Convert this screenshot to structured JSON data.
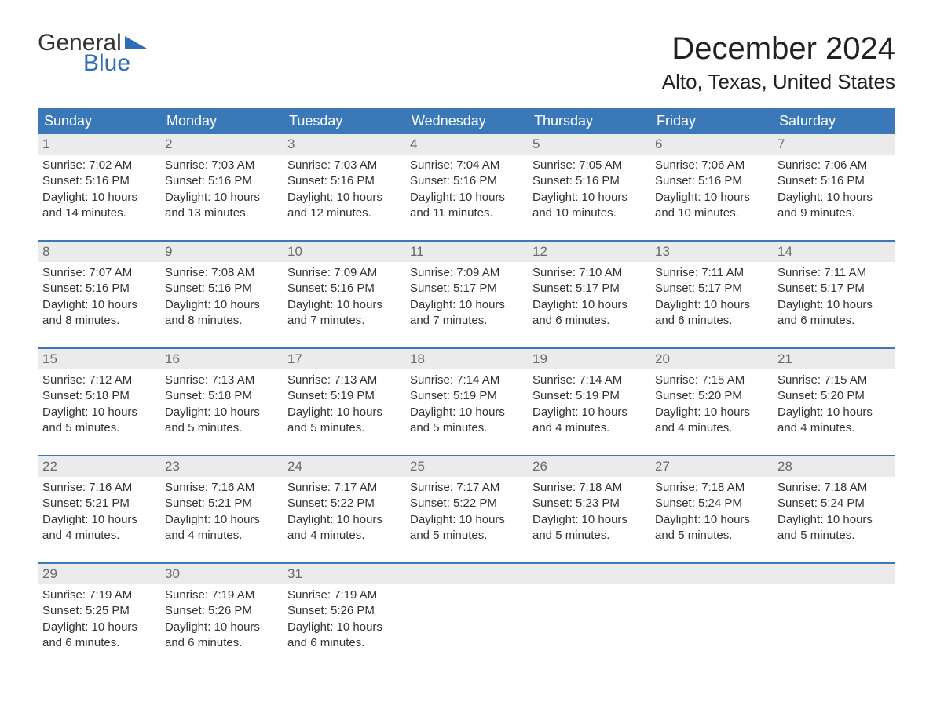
{
  "logo": {
    "text1": "General",
    "text2": "Blue",
    "accent_color": "#2f6eb5"
  },
  "title": "December 2024",
  "location": "Alto, Texas, United States",
  "colors": {
    "header_bg": "#3a78b8",
    "header_text": "#ffffff",
    "daynum_bg": "#ebebeb",
    "daynum_text": "#6a6a6a",
    "body_text": "#333333",
    "week_divider": "#3a78b8",
    "page_bg": "#ffffff"
  },
  "typography": {
    "title_fontsize": 40,
    "location_fontsize": 26,
    "dow_fontsize": 18,
    "daynum_fontsize": 17,
    "body_fontsize": 15
  },
  "days_of_week": [
    "Sunday",
    "Monday",
    "Tuesday",
    "Wednesday",
    "Thursday",
    "Friday",
    "Saturday"
  ],
  "weeks": [
    [
      {
        "n": "1",
        "sunrise": "Sunrise: 7:02 AM",
        "sunset": "Sunset: 5:16 PM",
        "d1": "Daylight: 10 hours",
        "d2": "and 14 minutes."
      },
      {
        "n": "2",
        "sunrise": "Sunrise: 7:03 AM",
        "sunset": "Sunset: 5:16 PM",
        "d1": "Daylight: 10 hours",
        "d2": "and 13 minutes."
      },
      {
        "n": "3",
        "sunrise": "Sunrise: 7:03 AM",
        "sunset": "Sunset: 5:16 PM",
        "d1": "Daylight: 10 hours",
        "d2": "and 12 minutes."
      },
      {
        "n": "4",
        "sunrise": "Sunrise: 7:04 AM",
        "sunset": "Sunset: 5:16 PM",
        "d1": "Daylight: 10 hours",
        "d2": "and 11 minutes."
      },
      {
        "n": "5",
        "sunrise": "Sunrise: 7:05 AM",
        "sunset": "Sunset: 5:16 PM",
        "d1": "Daylight: 10 hours",
        "d2": "and 10 minutes."
      },
      {
        "n": "6",
        "sunrise": "Sunrise: 7:06 AM",
        "sunset": "Sunset: 5:16 PM",
        "d1": "Daylight: 10 hours",
        "d2": "and 10 minutes."
      },
      {
        "n": "7",
        "sunrise": "Sunrise: 7:06 AM",
        "sunset": "Sunset: 5:16 PM",
        "d1": "Daylight: 10 hours",
        "d2": "and 9 minutes."
      }
    ],
    [
      {
        "n": "8",
        "sunrise": "Sunrise: 7:07 AM",
        "sunset": "Sunset: 5:16 PM",
        "d1": "Daylight: 10 hours",
        "d2": "and 8 minutes."
      },
      {
        "n": "9",
        "sunrise": "Sunrise: 7:08 AM",
        "sunset": "Sunset: 5:16 PM",
        "d1": "Daylight: 10 hours",
        "d2": "and 8 minutes."
      },
      {
        "n": "10",
        "sunrise": "Sunrise: 7:09 AM",
        "sunset": "Sunset: 5:16 PM",
        "d1": "Daylight: 10 hours",
        "d2": "and 7 minutes."
      },
      {
        "n": "11",
        "sunrise": "Sunrise: 7:09 AM",
        "sunset": "Sunset: 5:17 PM",
        "d1": "Daylight: 10 hours",
        "d2": "and 7 minutes."
      },
      {
        "n": "12",
        "sunrise": "Sunrise: 7:10 AM",
        "sunset": "Sunset: 5:17 PM",
        "d1": "Daylight: 10 hours",
        "d2": "and 6 minutes."
      },
      {
        "n": "13",
        "sunrise": "Sunrise: 7:11 AM",
        "sunset": "Sunset: 5:17 PM",
        "d1": "Daylight: 10 hours",
        "d2": "and 6 minutes."
      },
      {
        "n": "14",
        "sunrise": "Sunrise: 7:11 AM",
        "sunset": "Sunset: 5:17 PM",
        "d1": "Daylight: 10 hours",
        "d2": "and 6 minutes."
      }
    ],
    [
      {
        "n": "15",
        "sunrise": "Sunrise: 7:12 AM",
        "sunset": "Sunset: 5:18 PM",
        "d1": "Daylight: 10 hours",
        "d2": "and 5 minutes."
      },
      {
        "n": "16",
        "sunrise": "Sunrise: 7:13 AM",
        "sunset": "Sunset: 5:18 PM",
        "d1": "Daylight: 10 hours",
        "d2": "and 5 minutes."
      },
      {
        "n": "17",
        "sunrise": "Sunrise: 7:13 AM",
        "sunset": "Sunset: 5:19 PM",
        "d1": "Daylight: 10 hours",
        "d2": "and 5 minutes."
      },
      {
        "n": "18",
        "sunrise": "Sunrise: 7:14 AM",
        "sunset": "Sunset: 5:19 PM",
        "d1": "Daylight: 10 hours",
        "d2": "and 5 minutes."
      },
      {
        "n": "19",
        "sunrise": "Sunrise: 7:14 AM",
        "sunset": "Sunset: 5:19 PM",
        "d1": "Daylight: 10 hours",
        "d2": "and 4 minutes."
      },
      {
        "n": "20",
        "sunrise": "Sunrise: 7:15 AM",
        "sunset": "Sunset: 5:20 PM",
        "d1": "Daylight: 10 hours",
        "d2": "and 4 minutes."
      },
      {
        "n": "21",
        "sunrise": "Sunrise: 7:15 AM",
        "sunset": "Sunset: 5:20 PM",
        "d1": "Daylight: 10 hours",
        "d2": "and 4 minutes."
      }
    ],
    [
      {
        "n": "22",
        "sunrise": "Sunrise: 7:16 AM",
        "sunset": "Sunset: 5:21 PM",
        "d1": "Daylight: 10 hours",
        "d2": "and 4 minutes."
      },
      {
        "n": "23",
        "sunrise": "Sunrise: 7:16 AM",
        "sunset": "Sunset: 5:21 PM",
        "d1": "Daylight: 10 hours",
        "d2": "and 4 minutes."
      },
      {
        "n": "24",
        "sunrise": "Sunrise: 7:17 AM",
        "sunset": "Sunset: 5:22 PM",
        "d1": "Daylight: 10 hours",
        "d2": "and 4 minutes."
      },
      {
        "n": "25",
        "sunrise": "Sunrise: 7:17 AM",
        "sunset": "Sunset: 5:22 PM",
        "d1": "Daylight: 10 hours",
        "d2": "and 5 minutes."
      },
      {
        "n": "26",
        "sunrise": "Sunrise: 7:18 AM",
        "sunset": "Sunset: 5:23 PM",
        "d1": "Daylight: 10 hours",
        "d2": "and 5 minutes."
      },
      {
        "n": "27",
        "sunrise": "Sunrise: 7:18 AM",
        "sunset": "Sunset: 5:24 PM",
        "d1": "Daylight: 10 hours",
        "d2": "and 5 minutes."
      },
      {
        "n": "28",
        "sunrise": "Sunrise: 7:18 AM",
        "sunset": "Sunset: 5:24 PM",
        "d1": "Daylight: 10 hours",
        "d2": "and 5 minutes."
      }
    ],
    [
      {
        "n": "29",
        "sunrise": "Sunrise: 7:19 AM",
        "sunset": "Sunset: 5:25 PM",
        "d1": "Daylight: 10 hours",
        "d2": "and 6 minutes."
      },
      {
        "n": "30",
        "sunrise": "Sunrise: 7:19 AM",
        "sunset": "Sunset: 5:26 PM",
        "d1": "Daylight: 10 hours",
        "d2": "and 6 minutes."
      },
      {
        "n": "31",
        "sunrise": "Sunrise: 7:19 AM",
        "sunset": "Sunset: 5:26 PM",
        "d1": "Daylight: 10 hours",
        "d2": "and 6 minutes."
      },
      {
        "n": "",
        "sunrise": "",
        "sunset": "",
        "d1": "",
        "d2": ""
      },
      {
        "n": "",
        "sunrise": "",
        "sunset": "",
        "d1": "",
        "d2": ""
      },
      {
        "n": "",
        "sunrise": "",
        "sunset": "",
        "d1": "",
        "d2": ""
      },
      {
        "n": "",
        "sunrise": "",
        "sunset": "",
        "d1": "",
        "d2": ""
      }
    ]
  ]
}
